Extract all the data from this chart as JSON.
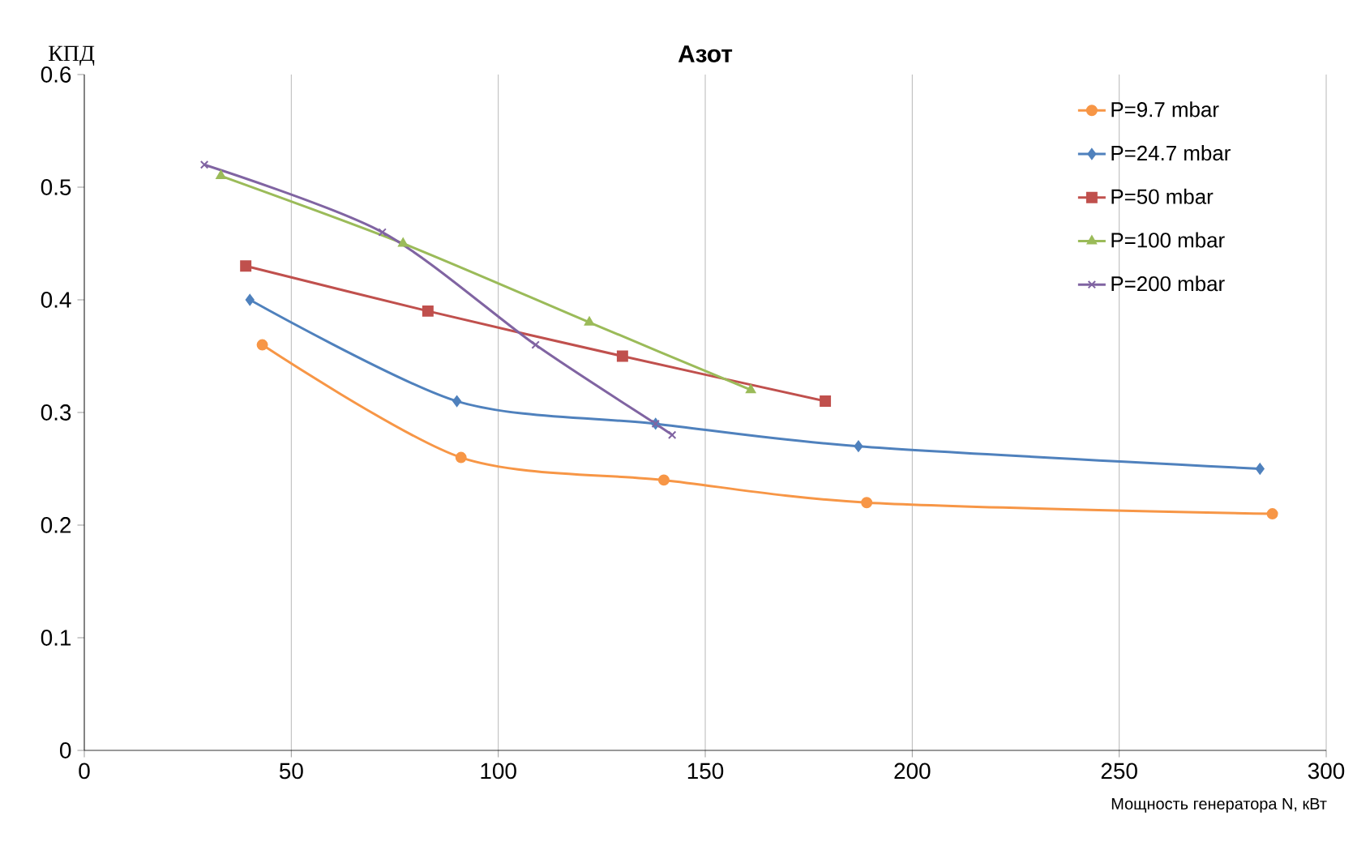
{
  "chart_data": {
    "type": "line",
    "title": "Азот",
    "xlabel": "Мощность генератора N, кВт",
    "ylabel": "КПД",
    "xlim": [
      0,
      300
    ],
    "xticks": [
      0,
      50,
      100,
      150,
      200,
      250,
      300
    ],
    "ylim": [
      0,
      0.6
    ],
    "yticks": [
      0,
      0.1,
      0.2,
      0.3,
      0.4,
      0.5,
      0.6
    ],
    "grid": "x",
    "legend": "top right",
    "series": [
      {
        "name": "P=9.7 mbar",
        "color": "#f79646",
        "marker": "circle",
        "x": [
          43,
          91,
          140,
          189,
          287
        ],
        "values": [
          0.36,
          0.26,
          0.24,
          0.22,
          0.21
        ]
      },
      {
        "name": "P=24.7 mbar",
        "color": "#4f81bd",
        "marker": "diamond",
        "x": [
          40,
          90,
          138,
          187,
          284
        ],
        "values": [
          0.4,
          0.31,
          0.29,
          0.27,
          0.25
        ]
      },
      {
        "name": "P=50 mbar",
        "color": "#c0504d",
        "marker": "square",
        "x": [
          39,
          83,
          130,
          179
        ],
        "values": [
          0.43,
          0.39,
          0.35,
          0.31
        ]
      },
      {
        "name": "P=100 mbar",
        "color": "#9bbb59",
        "marker": "triangle",
        "x": [
          33,
          77,
          122,
          161
        ],
        "values": [
          0.51,
          0.45,
          0.38,
          0.32
        ]
      },
      {
        "name": "P=200 mbar",
        "color": "#8064a2",
        "marker": "cross",
        "x": [
          29,
          72,
          109,
          138,
          142
        ],
        "values": [
          0.52,
          0.46,
          0.36,
          0.29,
          0.28
        ]
      }
    ]
  }
}
